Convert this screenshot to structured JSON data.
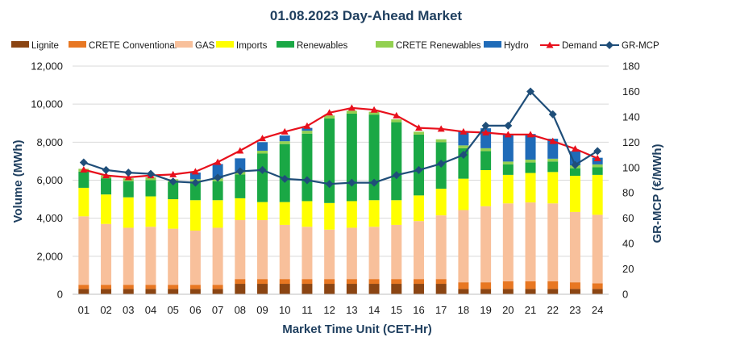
{
  "chart_data": {
    "type": "bar",
    "title": "01.08.2023  Day-Ahead Market",
    "xlabel": "Market Time Unit (CET-Hr)",
    "ylabel": "Volume (MWh)",
    "y2label": "GR-MCP (€/MWh)",
    "ylim": [
      0,
      12000
    ],
    "y2lim": [
      0,
      180
    ],
    "yticks": [
      "0",
      "2,000",
      "4,000",
      "6,000",
      "8,000",
      "10,000",
      "12,000"
    ],
    "y2ticks": [
      "0",
      "20",
      "40",
      "60",
      "80",
      "100",
      "120",
      "140",
      "160",
      "180"
    ],
    "categories": [
      "01",
      "02",
      "03",
      "04",
      "05",
      "06",
      "07",
      "08",
      "09",
      "10",
      "11",
      "12",
      "13",
      "14",
      "15",
      "16",
      "17",
      "18",
      "19",
      "20",
      "21",
      "22",
      "23",
      "24"
    ],
    "series": [
      {
        "name": "Lignite",
        "kind": "bar",
        "color": "#8b4513",
        "values": [
          280,
          280,
          280,
          280,
          280,
          280,
          280,
          550,
          550,
          550,
          550,
          550,
          550,
          550,
          550,
          550,
          550,
          280,
          280,
          280,
          280,
          280,
          280,
          280
        ]
      },
      {
        "name": "CRETE Conventional",
        "kind": "bar",
        "color": "#e87722",
        "values": [
          220,
          220,
          220,
          220,
          220,
          220,
          220,
          250,
          250,
          250,
          250,
          250,
          250,
          250,
          250,
          250,
          250,
          350,
          350,
          400,
          400,
          400,
          350,
          300
        ]
      },
      {
        "name": "GAS",
        "kind": "bar",
        "color": "#f8c09b",
        "values": [
          3600,
          3200,
          3000,
          3050,
          2950,
          2850,
          3000,
          3100,
          3100,
          2850,
          2750,
          2600,
          2700,
          2750,
          2850,
          3050,
          3350,
          3800,
          4000,
          4100,
          4150,
          4100,
          3700,
          3600
        ]
      },
      {
        "name": "Imports",
        "kind": "bar",
        "color": "#ffff00",
        "values": [
          1500,
          1550,
          1600,
          1600,
          1550,
          1600,
          1450,
          1150,
          950,
          1200,
          1350,
          1400,
          1400,
          1400,
          1300,
          1350,
          1400,
          1650,
          1900,
          1500,
          1550,
          1650,
          1900,
          2100
        ]
      },
      {
        "name": "Renewables",
        "kind": "bar",
        "color": "#1aa845",
        "values": [
          850,
          850,
          850,
          850,
          900,
          950,
          1000,
          1250,
          2550,
          3050,
          3550,
          4450,
          4600,
          4500,
          4100,
          3200,
          2450,
          1600,
          1000,
          550,
          550,
          550,
          400,
          400
        ]
      },
      {
        "name": "CRETE Renewables",
        "kind": "bar",
        "color": "#92d050",
        "values": [
          150,
          150,
          150,
          150,
          150,
          150,
          150,
          150,
          150,
          150,
          150,
          150,
          150,
          150,
          150,
          150,
          150,
          150,
          150,
          150,
          150,
          150,
          150,
          150
        ]
      },
      {
        "name": "Hydro",
        "kind": "bar",
        "color": "#1f6bb8",
        "values": [
          0,
          0,
          0,
          0,
          0,
          350,
          750,
          700,
          450,
          300,
          150,
          0,
          0,
          0,
          0,
          0,
          0,
          750,
          1050,
          1450,
          1350,
          1050,
          750,
          350
        ]
      },
      {
        "name": "Demand",
        "kind": "line",
        "axis": "left",
        "color": "#e8101c",
        "marker": "triangle",
        "values": [
          6550,
          6250,
          6150,
          6250,
          6300,
          6450,
          6950,
          7550,
          8200,
          8550,
          8850,
          9550,
          9800,
          9700,
          9400,
          8750,
          8700,
          8550,
          8500,
          8400,
          8400,
          8050,
          7650,
          7150
        ]
      },
      {
        "name": "GR-MCP",
        "kind": "line",
        "axis": "right",
        "color": "#1f4e79",
        "marker": "diamond",
        "values": [
          104,
          98,
          96,
          95,
          89,
          88,
          92,
          97,
          98,
          91,
          90,
          87,
          88,
          88,
          94,
          98,
          103,
          110,
          133,
          133,
          160,
          142,
          102,
          113
        ]
      }
    ]
  }
}
